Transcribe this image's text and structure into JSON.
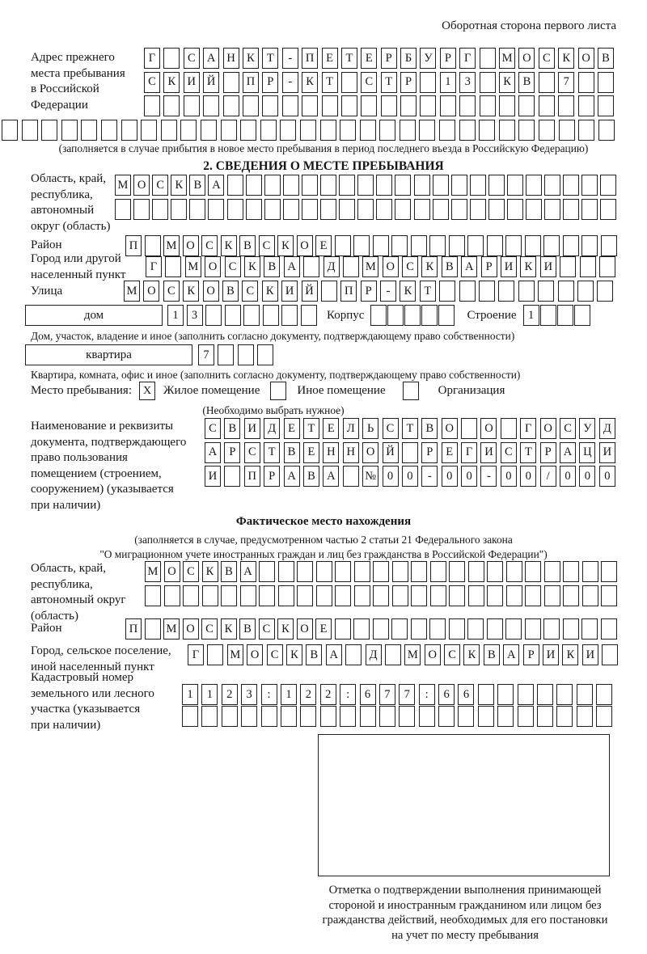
{
  "page": {
    "back_note": "Оборотная сторона первого листа"
  },
  "prev_address": {
    "label": "Адрес прежнего\nместа пребывания\nв Российской\nФедерации",
    "rows": [
      {
        "count": 24,
        "value": "Г САНКТ-ПЕТЕРБУРГ МОСКОВ"
      },
      {
        "count": 24,
        "value": "СКИЙ ПР-КТ СТР 13 КВ 7"
      },
      {
        "count": 24,
        "value": ""
      },
      {
        "count": 31,
        "value": ""
      }
    ],
    "note": "(заполняется в случае прибытия в новое место пребывания в период последнего въезда в Российскую Федерацию)"
  },
  "section2": {
    "title": "2. СВЕДЕНИЯ О МЕСТЕ ПРЕБЫВАНИЯ",
    "region": {
      "label": "Область, край,\nреспублика,\nавтономный\nокруг (область)",
      "rows": [
        {
          "count": 27,
          "value": "МОСКВА"
        },
        {
          "count": 27,
          "value": ""
        }
      ]
    },
    "district": {
      "label": "Район",
      "rows": [
        {
          "count": 26,
          "value": "П МОСКВСКОЕ"
        }
      ]
    },
    "city": {
      "label": "Город или другой\nнаселенный пункт",
      "rows": [
        {
          "count": 24,
          "value": "Г МОСКВА Д МОСКВАРИКИ"
        }
      ]
    },
    "street": {
      "label": "Улица",
      "rows": [
        {
          "count": 25,
          "value": "МОСКОВСКИЙ ПР-КТ"
        }
      ]
    },
    "house": {
      "box_label": "дом",
      "cells": {
        "count": 8,
        "value": "13"
      },
      "korpus_label": "Корпус",
      "korpus_cells": {
        "count": 5,
        "value": ""
      },
      "stroenie_label": "Строение",
      "stroenie_cells": {
        "count": 4,
        "value": "1"
      },
      "note": "Дом, участок, владение и иное (заполнить согласно документу, подтверждающему право собственности)"
    },
    "apartment": {
      "box_label": "квартира",
      "cells": {
        "count": 4,
        "value": "7"
      },
      "note": "Квартира, комната, офис и иное (заполнить согласно документу, подтверждающему право собственности)"
    },
    "stay_type": {
      "label": "Место пребывания:",
      "options": [
        {
          "label": "Жилое помещение",
          "checked": "X"
        },
        {
          "label": "Иное помещение",
          "checked": ""
        },
        {
          "label": "Организация",
          "checked": ""
        }
      ],
      "hint": "(Необходимо выбрать нужное)"
    },
    "doc": {
      "label": "Наименование и реквизиты\nдокумента, подтверждающего\nправо пользования\nпомещением (строением,\nсооружением) (указывается\nпри наличии)",
      "rows": [
        {
          "count": 21,
          "value": "СВИДЕТЕЛЬСТВО О ГОСУД"
        },
        {
          "count": 21,
          "value": "АРСТВЕННОЙ РЕГИСТРАЦИ"
        },
        {
          "count": 21,
          "value": "И ПРАВА №00-00-00/000"
        }
      ]
    }
  },
  "actual_location": {
    "title": "Фактическое место нахождения",
    "note": "(заполняется в случае, предусмотренном частью 2 статьи 21 Федерального закона\n\"О миграционном учете иностранных граждан и лиц без гражданства в Российской Федерации\")",
    "region": {
      "label": "Область, край,\nреспублика,\nавтономный округ\n(область)",
      "rows": [
        {
          "count": 25,
          "value": "МОСКВА"
        },
        {
          "count": 25,
          "value": ""
        }
      ]
    },
    "district": {
      "label": "Район",
      "rows": [
        {
          "count": 26,
          "value": "П МОСКВСКОЕ"
        }
      ]
    },
    "city": {
      "label": "Город, сельское поселение,\nиной населенный пункт",
      "rows": [
        {
          "count": 22,
          "value": "Г МОСКВА Д МОСКВАРИКИ"
        }
      ]
    },
    "cadastre": {
      "label": "Кадастровый номер\nземельного или лесного\nучастка (указывается\nпри наличии)",
      "rows": [
        {
          "count": 22,
          "value": "1123:122:677:66"
        },
        {
          "count": 22,
          "value": ""
        }
      ]
    },
    "stamp_caption": "Отметка о подтверждении выполнения принимающей\nстороной и иностранным гражданином или лицом без\nгражданства действий, необходимых для его постановки\nна учет по месту пребывания"
  }
}
